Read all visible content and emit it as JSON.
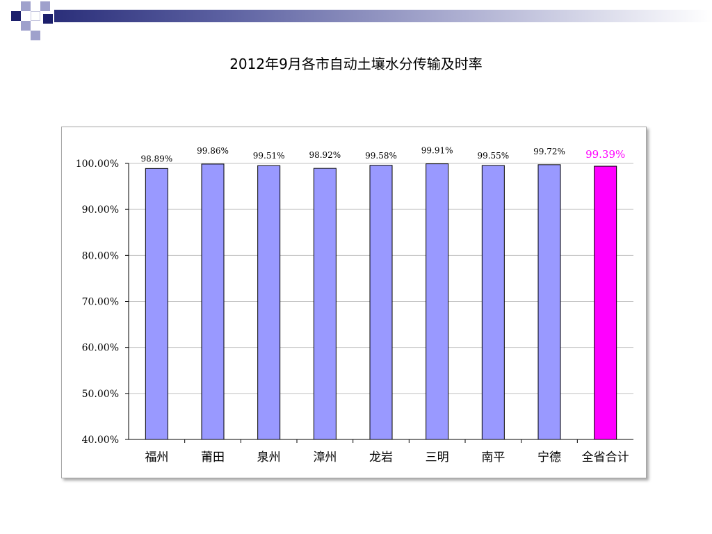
{
  "slide": {
    "title": "2012年9月各市自动土壤水分传输及时率"
  },
  "colors": {
    "bar": "#9999ff",
    "highlight": "#ff00ff",
    "highlight_label": "#ff00ff",
    "deco_dark": "#1c1f6b",
    "deco_light": "#9fa1cc"
  },
  "chart_data": {
    "type": "bar",
    "title": "",
    "xlabel": "",
    "ylabel": "",
    "categories": [
      "福州",
      "莆田",
      "泉州",
      "漳州",
      "龙岩",
      "三明",
      "南平",
      "宁德",
      "全省合计"
    ],
    "values": [
      98.89,
      99.86,
      99.51,
      98.92,
      99.58,
      99.91,
      99.55,
      99.72,
      99.39
    ],
    "data_labels": [
      "98.89%",
      "99.86%",
      "99.51%",
      "98.92%",
      "99.58%",
      "99.91%",
      "99.55%",
      "99.72%",
      "99.39%"
    ],
    "highlight_index": 8,
    "ylim": [
      40,
      100
    ],
    "yticks": [
      40,
      50,
      60,
      70,
      80,
      90,
      100
    ],
    "ytick_labels": [
      "40.00%",
      "50.00%",
      "60.00%",
      "70.00%",
      "80.00%",
      "90.00%",
      "100.00%"
    ],
    "grid": true,
    "legend": "none"
  }
}
